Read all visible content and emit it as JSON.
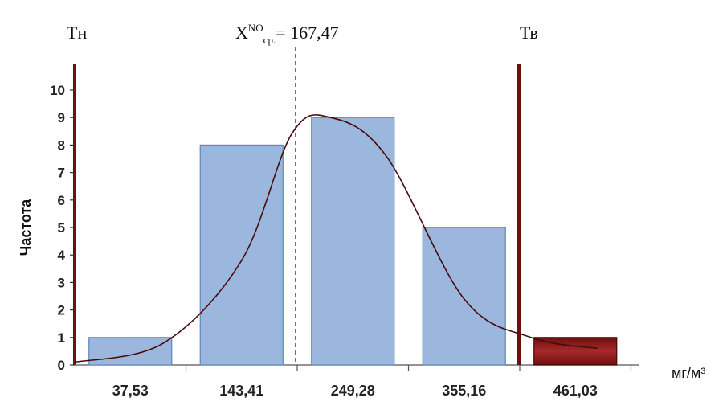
{
  "chart_data": {
    "type": "bar",
    "categories": [
      "37,53",
      "143,41",
      "249,28",
      "355,16",
      "461,03"
    ],
    "values": [
      1,
      8,
      9,
      5,
      1
    ],
    "bar_colors": [
      "#9bb7dd",
      "#9bb7dd",
      "#9bb7dd",
      "#9bb7dd",
      "#8b1a1a"
    ],
    "curve": [
      [
        0,
        0.1
      ],
      [
        0.8,
        0.8
      ],
      [
        1.5,
        3.8
      ],
      [
        1.95,
        8.4
      ],
      [
        2.3,
        9.0
      ],
      [
        2.8,
        7.6
      ],
      [
        3.5,
        2.4
      ],
      [
        4.1,
        1.0
      ],
      [
        4.7,
        0.6
      ]
    ],
    "ylabel": "Частота",
    "xunit": "мг/м³",
    "ylim": [
      0,
      10
    ],
    "yticks": [
      0,
      1,
      2,
      3,
      4,
      5,
      6,
      7,
      8,
      9,
      10
    ],
    "lower_limit_label": "Тн",
    "upper_limit_label": "Тв",
    "mean_label_sup": "NO",
    "mean_label_sub": "ср.",
    "mean_label_prefix": "X",
    "mean_label_value": "= 167,47",
    "mean_position": 2.0
  }
}
